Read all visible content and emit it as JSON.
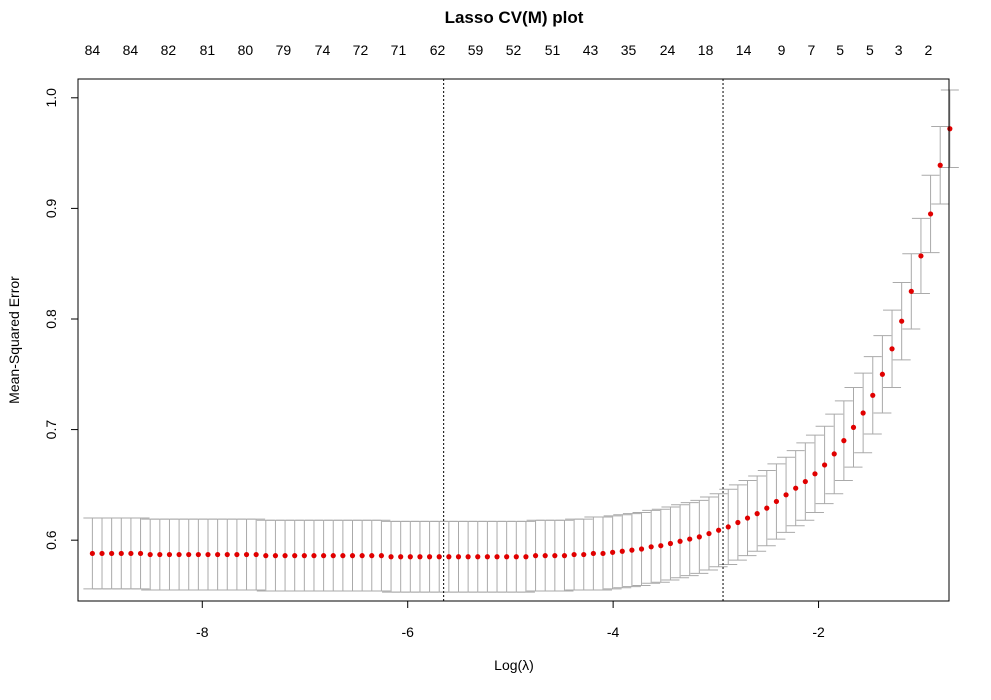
{
  "chart_data": {
    "type": "scatter",
    "title": "Lasso CV(M) plot",
    "xlabel": "Log(λ)",
    "ylabel": "Mean-Squared Error",
    "xlim": [
      -9.21,
      -0.73
    ],
    "ylim": [
      0.545,
      1.017
    ],
    "x_ticks": [
      -8,
      -6,
      -4,
      -2
    ],
    "x_tick_labels": [
      "-8",
      "-6",
      "-4",
      "-2"
    ],
    "y_ticks": [
      0.6,
      0.7,
      0.8,
      0.9,
      1.0
    ],
    "y_tick_labels": [
      "0.6",
      "0.7",
      "0.8",
      "0.9",
      "1.0"
    ],
    "top_axis": {
      "x": [
        -9.07,
        -8.7,
        -8.33,
        -7.95,
        -7.58,
        -7.21,
        -6.83,
        -6.46,
        -6.09,
        -5.71,
        -5.34,
        -4.97,
        -4.59,
        -4.22,
        -3.85,
        -3.47,
        -3.1,
        -2.73,
        -2.36,
        -2.07,
        -1.79,
        -1.5,
        -1.22,
        -0.93
      ],
      "labels": [
        "84",
        "84",
        "82",
        "81",
        "80",
        "79",
        "74",
        "72",
        "71",
        "62",
        "59",
        "52",
        "51",
        "43",
        "35",
        "24",
        "18",
        "14",
        "9",
        "7",
        "5",
        "5",
        "3",
        "2"
      ]
    },
    "vlines": [
      -5.65,
      -2.93
    ],
    "point_color": "#e00000",
    "errorbar_color": "#aaaaaa",
    "x_start": -9.07,
    "x_step": 0.0938,
    "series": [
      {
        "y": [
          0.588,
          0.588,
          0.588,
          0.588,
          0.588,
          0.588,
          0.587,
          0.587,
          0.587,
          0.587,
          0.587,
          0.587,
          0.587,
          0.587,
          0.587,
          0.587,
          0.587,
          0.587,
          0.586,
          0.586,
          0.586,
          0.586,
          0.586,
          0.586,
          0.586,
          0.586,
          0.586,
          0.586,
          0.586,
          0.586,
          0.586,
          0.585,
          0.585,
          0.585,
          0.585,
          0.585,
          0.585,
          0.585,
          0.585,
          0.585,
          0.585,
          0.585,
          0.585,
          0.585,
          0.585,
          0.585,
          0.586,
          0.586,
          0.586,
          0.586,
          0.587,
          0.587,
          0.588,
          0.588,
          0.589,
          0.59,
          0.591,
          0.592,
          0.594,
          0.595,
          0.597,
          0.599,
          0.601,
          0.603,
          0.606,
          0.609,
          0.612,
          0.616,
          0.62,
          0.624,
          0.629,
          0.635,
          0.641,
          0.647,
          0.653,
          0.66,
          0.668,
          0.678,
          0.69,
          0.702,
          0.715,
          0.731,
          0.75,
          0.773,
          0.798,
          0.825,
          0.857,
          0.895,
          0.939,
          0.972
        ],
        "se": [
          0.032,
          0.032,
          0.032,
          0.032,
          0.032,
          0.032,
          0.032,
          0.032,
          0.032,
          0.032,
          0.032,
          0.032,
          0.032,
          0.032,
          0.032,
          0.032,
          0.032,
          0.032,
          0.032,
          0.032,
          0.032,
          0.032,
          0.032,
          0.032,
          0.032,
          0.032,
          0.032,
          0.032,
          0.032,
          0.032,
          0.032,
          0.032,
          0.032,
          0.032,
          0.032,
          0.032,
          0.032,
          0.032,
          0.032,
          0.032,
          0.032,
          0.032,
          0.032,
          0.032,
          0.032,
          0.032,
          0.032,
          0.032,
          0.032,
          0.032,
          0.032,
          0.032,
          0.033,
          0.033,
          0.033,
          0.033,
          0.033,
          0.033,
          0.033,
          0.033,
          0.033,
          0.033,
          0.033,
          0.033,
          0.033,
          0.033,
          0.034,
          0.034,
          0.034,
          0.034,
          0.034,
          0.034,
          0.034,
          0.034,
          0.035,
          0.035,
          0.035,
          0.036,
          0.036,
          0.036,
          0.036,
          0.035,
          0.035,
          0.035,
          0.035,
          0.034,
          0.034,
          0.035,
          0.035,
          0.035
        ]
      }
    ]
  }
}
